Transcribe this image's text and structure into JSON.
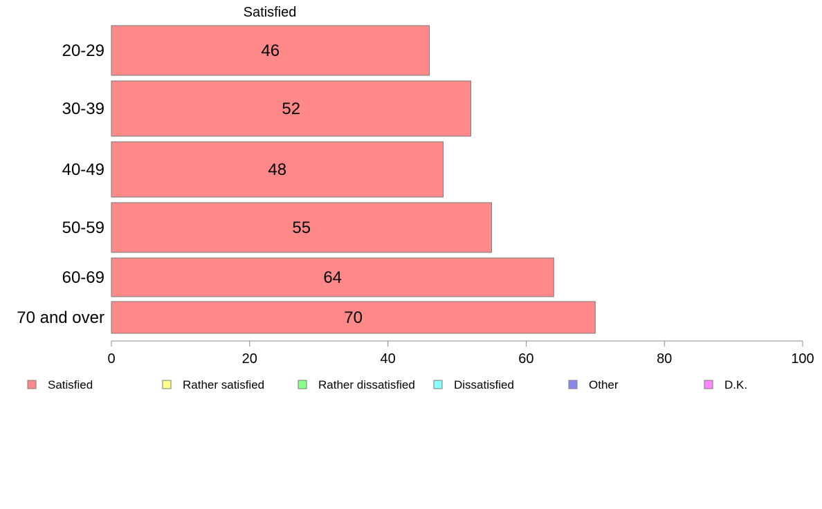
{
  "chart_data": {
    "type": "bar",
    "orientation": "horizontal",
    "series_title": "Satisfied",
    "categories": [
      "20-29",
      "30-39",
      "40-49",
      "50-59",
      "60-69",
      "70 and over"
    ],
    "series": [
      {
        "name": "Satisfied",
        "values": [
          46,
          52,
          48,
          55,
          64,
          70
        ]
      }
    ],
    "value_labels": [
      "46",
      "52",
      "48",
      "55",
      "64",
      "70"
    ],
    "xlim": [
      0,
      100
    ],
    "xticks": [
      0,
      20,
      40,
      60,
      80,
      100
    ],
    "xtick_labels": [
      "0",
      "20",
      "40",
      "60",
      "80",
      "100"
    ],
    "grid": false,
    "legend_position": "bottom",
    "legend": [
      {
        "label": "Satisfied",
        "color": "#ff8888"
      },
      {
        "label": "Rather satisfied",
        "color": "#ffff88"
      },
      {
        "label": "Rather dissatisfied",
        "color": "#88ff88"
      },
      {
        "label": "Dissatisfied",
        "color": "#88ffff"
      },
      {
        "label": "Other",
        "color": "#8888ee"
      },
      {
        "label": "D.K.",
        "color": "#ff88ff"
      }
    ],
    "bar_color": "#ff8888"
  }
}
